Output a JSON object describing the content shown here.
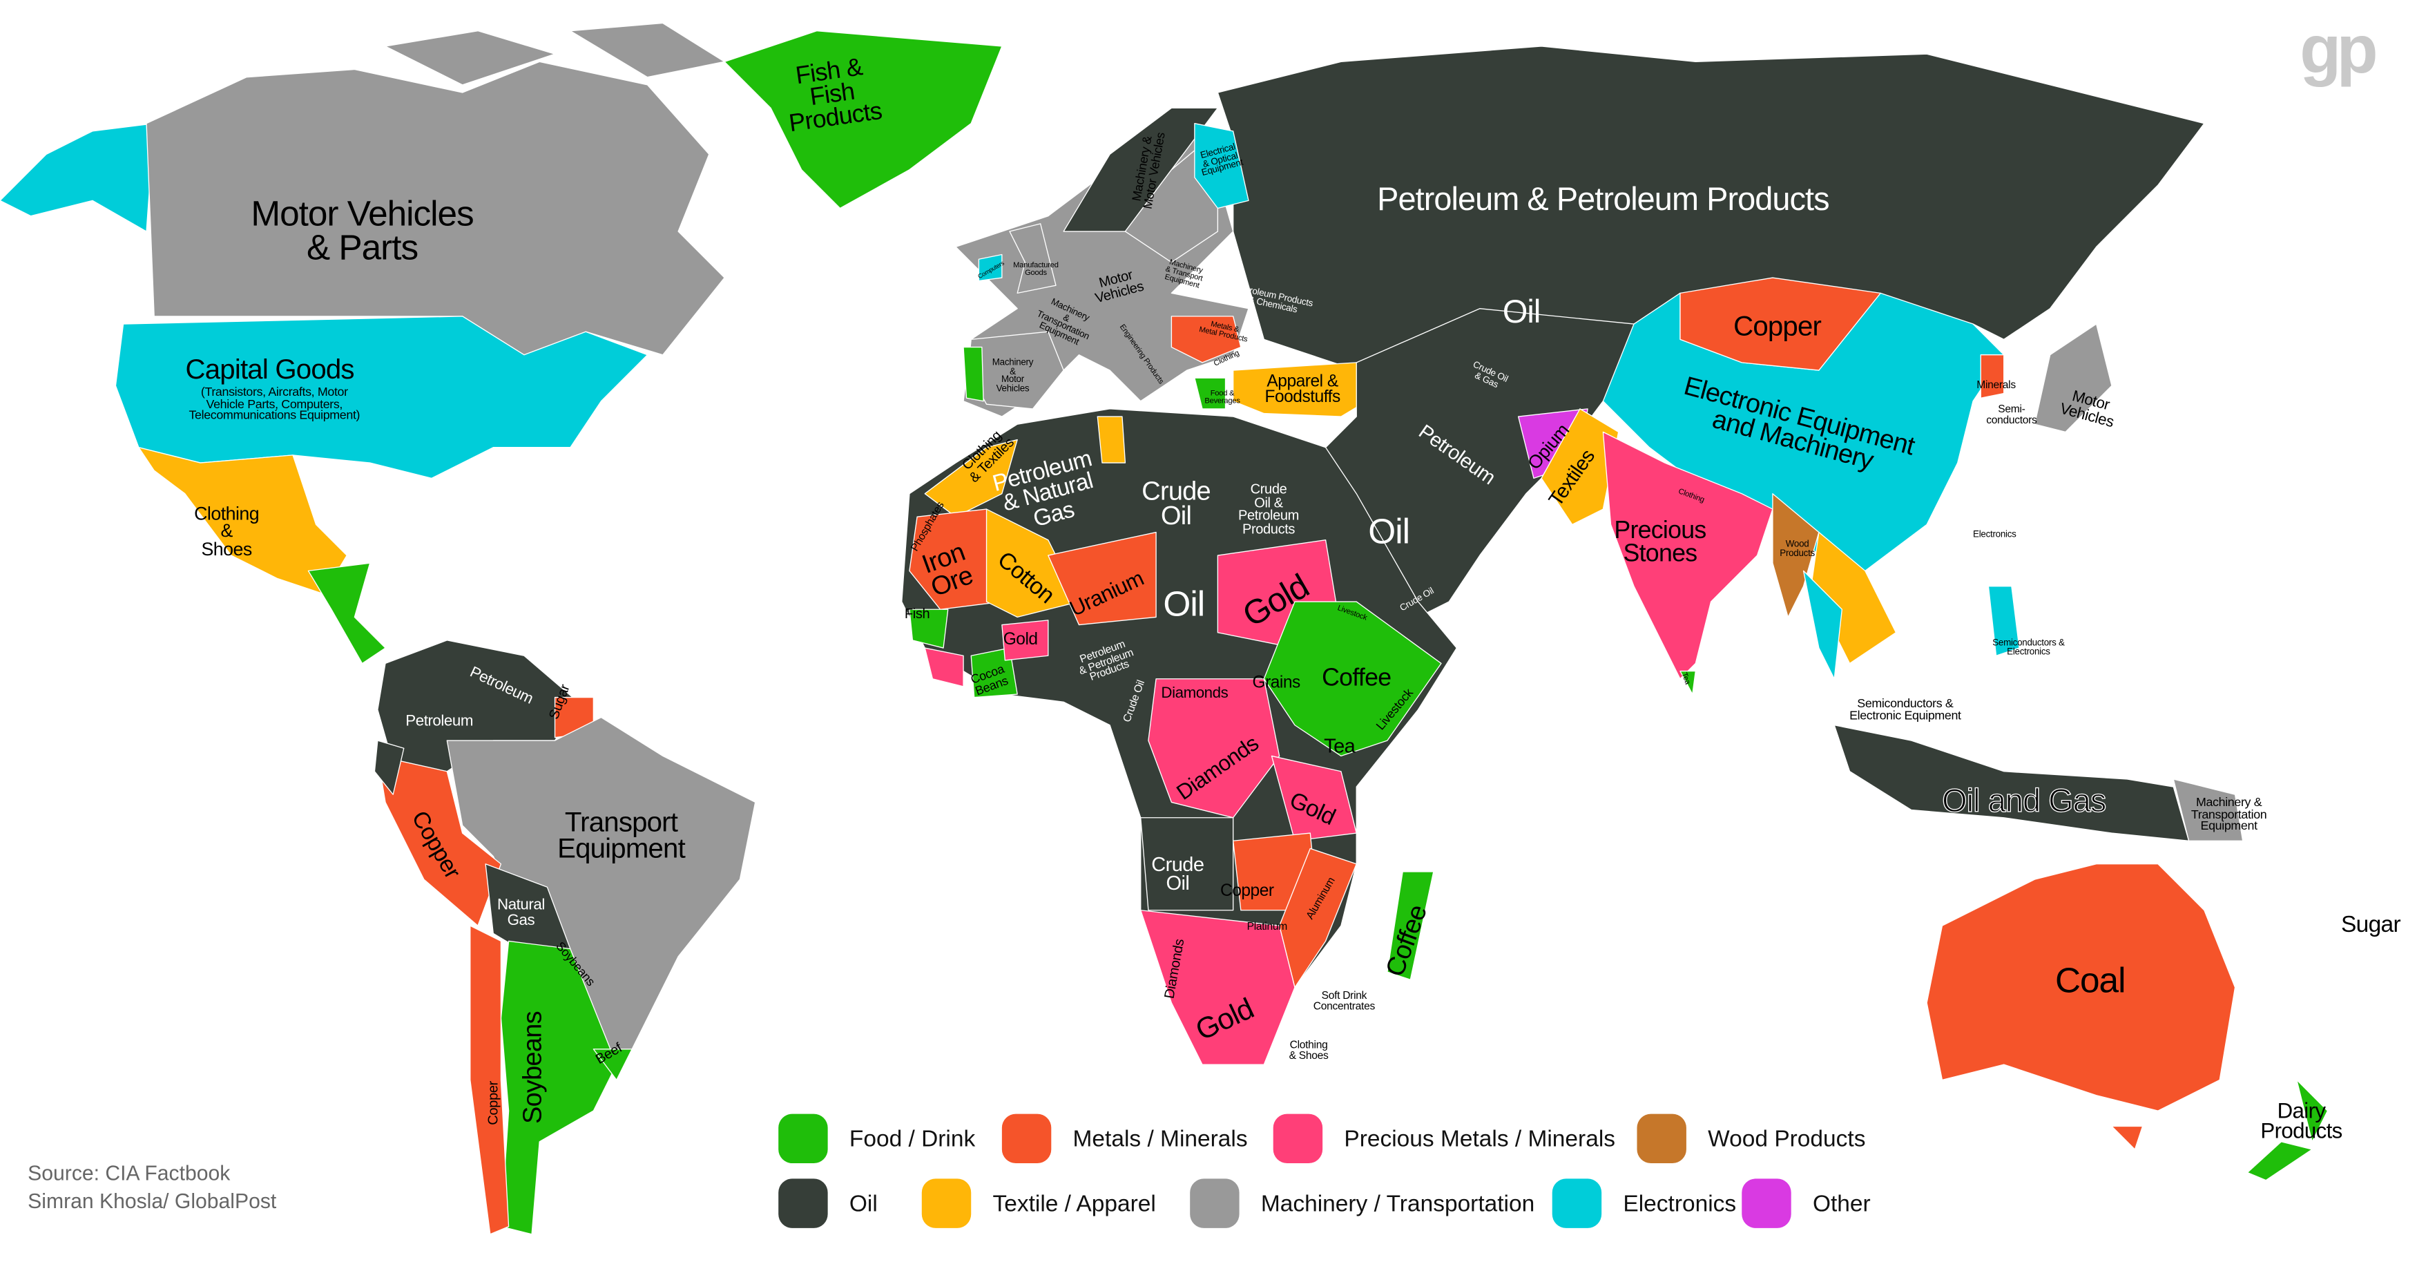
{
  "logo": "gp",
  "source": {
    "line1": "Source: CIA Factbook",
    "line2": "Simran Khosla/ GlobalPost"
  },
  "categories": {
    "food": {
      "label": "Food / Drink",
      "color": "#1fbe0a"
    },
    "metals": {
      "label": "Metals / Minerals",
      "color": "#f5542a"
    },
    "precious": {
      "label": "Precious Metals / Minerals",
      "color": "#ff3f78"
    },
    "wood": {
      "label": "Wood Products",
      "color": "#c6772a"
    },
    "oil": {
      "label": "Oil",
      "color": "#363e38"
    },
    "textile": {
      "label": "Textile / Apparel",
      "color": "#ffb608"
    },
    "machinery": {
      "label": "Machinery / Transportation",
      "color": "#999999"
    },
    "electronics": {
      "label": "Electronics",
      "color": "#00cdd9"
    },
    "other": {
      "label": "Other",
      "color": "#d93ae2"
    }
  },
  "legend_order": [
    "food",
    "metals",
    "precious",
    "wood",
    "oil",
    "textile",
    "machinery",
    "electronics",
    "other"
  ],
  "labels": [
    {
      "text": "Fish &\nFish\nProducts",
      "category": "food"
    },
    {
      "text": "Motor Vehicles\n& Parts",
      "category": "machinery"
    },
    {
      "text": "Capital Goods",
      "category": "electronics"
    },
    {
      "text": "(Transistors, Aircrafts, Motor\nVehicle Parts, Computers,\nTelecommunications Equipment)",
      "category": "electronics"
    },
    {
      "text": "Clothing\n&\nShoes",
      "category": "textile"
    },
    {
      "text": "Petroleum & Petroleum Products",
      "category": "oil"
    },
    {
      "text": "Oil",
      "category": "oil"
    },
    {
      "text": "Copper",
      "category": "metals"
    },
    {
      "text": "Electronic Equipment\nand Machinery",
      "category": "electronics"
    },
    {
      "text": "Motor\nVehicles",
      "category": "machinery"
    },
    {
      "text": "Minerals",
      "category": "metals"
    },
    {
      "text": "Semi-\nconductors",
      "category": "electronics"
    },
    {
      "text": "Apparel &\nFoodstuffs",
      "category": "textile"
    },
    {
      "text": "Petroleum\n& Natural\nGas",
      "category": "oil"
    },
    {
      "text": "Crude\nOil",
      "category": "oil"
    },
    {
      "text": "Crude\nOil &\nPetroleum\nProducts",
      "category": "oil"
    },
    {
      "text": "Oil",
      "category": "oil"
    },
    {
      "text": "Petroleum",
      "category": "oil"
    },
    {
      "text": "Opium",
      "category": "other"
    },
    {
      "text": "Textiles",
      "category": "textile"
    },
    {
      "text": "Precious\nStones",
      "category": "precious"
    },
    {
      "text": "Iron\nOre",
      "category": "metals"
    },
    {
      "text": "Cotton",
      "category": "textile"
    },
    {
      "text": "Uranium",
      "category": "metals"
    },
    {
      "text": "Oil",
      "category": "oil"
    },
    {
      "text": "Gold",
      "category": "precious"
    },
    {
      "text": "Coffee",
      "category": "food"
    },
    {
      "text": "Grains",
      "category": "food"
    },
    {
      "text": "Diamonds",
      "category": "precious"
    },
    {
      "text": "Diamonds",
      "category": "precious"
    },
    {
      "text": "Tea",
      "category": "food"
    },
    {
      "text": "Gold",
      "category": "precious"
    },
    {
      "text": "Crude\nOil",
      "category": "oil"
    },
    {
      "text": "Copper",
      "category": "metals"
    },
    {
      "text": "Platinum",
      "category": "precious"
    },
    {
      "text": "Aluminum",
      "category": "metals"
    },
    {
      "text": "Coffee",
      "category": "food"
    },
    {
      "text": "Diamonds",
      "category": "precious"
    },
    {
      "text": "Gold",
      "category": "precious"
    },
    {
      "text": "Soft Drink\nConcentrates",
      "category": "food"
    },
    {
      "text": "Clothing\n& Shoes",
      "category": "textile"
    },
    {
      "text": "Petroleum",
      "category": "oil"
    },
    {
      "text": "Petroleum",
      "category": "oil"
    },
    {
      "text": "Sugar",
      "category": "food"
    },
    {
      "text": "Transport\nEquipment",
      "category": "machinery"
    },
    {
      "text": "Copper",
      "category": "metals"
    },
    {
      "text": "Natural\nGas",
      "category": "oil"
    },
    {
      "text": "Soybeans",
      "category": "food"
    },
    {
      "text": "Soybeans",
      "category": "food"
    },
    {
      "text": "Beef",
      "category": "food"
    },
    {
      "text": "Copper",
      "category": "metals"
    },
    {
      "text": "Coal",
      "category": "metals"
    },
    {
      "text": "Sugar",
      "category": "food"
    },
    {
      "text": "Dairy\nProducts",
      "category": "food"
    },
    {
      "text": "Oil and Gas",
      "category": "oil"
    },
    {
      "text": "Machinery &\nTransportation\nEquipment",
      "category": "machinery"
    },
    {
      "text": "Semiconductors &\nElectronic Equipment",
      "category": "electronics"
    },
    {
      "text": "Semiconductors &\nElectronics",
      "category": "electronics"
    },
    {
      "text": "Electronics",
      "category": "electronics"
    },
    {
      "text": "Wood\nProducts",
      "category": "wood"
    },
    {
      "text": "Clothing\n& Textiles",
      "category": "textile"
    },
    {
      "text": "Phosphates",
      "category": "metals"
    },
    {
      "text": "Gold",
      "category": "precious"
    },
    {
      "text": "Fish",
      "category": "food"
    },
    {
      "text": "Petroleum\n& Petroleum\nProducts",
      "category": "oil"
    },
    {
      "text": "Crude Oil",
      "category": "oil"
    },
    {
      "text": "Cocoa\nBeans",
      "category": "food"
    },
    {
      "text": "Livestock",
      "category": "food"
    },
    {
      "text": "Machinery &\nMotor Vehicles",
      "category": "machinery"
    },
    {
      "text": "Electrical\n& Optical\nEquipment",
      "category": "electronics"
    },
    {
      "text": "Manufactured\nGoods",
      "category": "machinery"
    },
    {
      "text": "Motor\nVehicles",
      "category": "machinery"
    },
    {
      "text": "Machinery\n&\nTransportation\nEquipment",
      "category": "machinery"
    },
    {
      "text": "Machinery\n&\nMotor\nVehicles",
      "category": "machinery"
    },
    {
      "text": "Machinery\n& Transport\nEquipment",
      "category": "machinery"
    },
    {
      "text": "Petroleum Products\n& Chemicals",
      "category": "oil"
    },
    {
      "text": "Metals &\nMetal Products",
      "category": "metals"
    },
    {
      "text": "Clothing",
      "category": "textile"
    },
    {
      "text": "Food &\nBeverages",
      "category": "food"
    },
    {
      "text": "Engineering Products",
      "category": "machinery"
    },
    {
      "text": "Petroleum &\nPetroleum Products",
      "category": "oil"
    },
    {
      "text": "Crude Oil\n& Gas",
      "category": "oil"
    },
    {
      "text": "Crude Oil",
      "category": "oil"
    },
    {
      "text": "Livestock",
      "category": "food"
    },
    {
      "text": "Clothing",
      "category": "textile"
    },
    {
      "text": "Tea",
      "category": "food"
    },
    {
      "text": "Computers",
      "category": "electronics"
    }
  ]
}
